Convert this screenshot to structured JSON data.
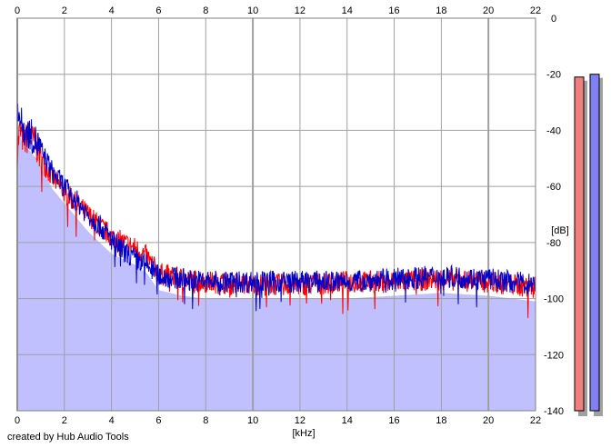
{
  "chart_data": {
    "type": "area",
    "title": "",
    "xlabel": "[kHz]",
    "ylabel": "[dB]",
    "xlim": [
      0,
      22
    ],
    "ylim": [
      -140,
      0
    ],
    "x_ticks": [
      0,
      2,
      4,
      6,
      8,
      10,
      12,
      14,
      16,
      18,
      20,
      22
    ],
    "y_ticks": [
      0,
      -20,
      -40,
      -60,
      -80,
      -100,
      -120,
      -140
    ],
    "grid": true,
    "legend": "none",
    "background_color": "#ffffff",
    "grid_color": "#a0a0a0",
    "fill_color": "#c0c0ff",
    "series": [
      {
        "color": "#ff0000",
        "x": [
          0,
          0.1,
          0.3,
          0.5,
          0.8,
          1.0,
          1.5,
          2.0,
          2.5,
          3.0,
          3.5,
          4.0,
          4.5,
          5.0,
          5.5,
          6.0,
          7.0,
          8.0,
          10.0,
          12.0,
          14.0,
          16.0,
          18.0,
          20.0,
          21.0,
          22.0
        ],
        "y": [
          -48,
          -40,
          -44,
          -42,
          -45,
          -50,
          -57,
          -62,
          -66,
          -70,
          -74,
          -78,
          -80,
          -82,
          -85,
          -91,
          -93,
          -94,
          -95,
          -95,
          -94,
          -94,
          -93,
          -94,
          -95,
          -96
        ]
      },
      {
        "color": "#0000cc",
        "x": [
          0,
          0.1,
          0.3,
          0.5,
          0.8,
          1.0,
          1.5,
          2.0,
          2.5,
          3.0,
          3.5,
          4.0,
          4.5,
          5.0,
          5.5,
          6.0,
          7.0,
          8.0,
          10.0,
          12.0,
          14.0,
          16.0,
          18.0,
          20.0,
          21.0,
          22.0
        ],
        "y": [
          -28,
          -36,
          -40,
          -41,
          -44,
          -47,
          -55,
          -60,
          -65,
          -70,
          -74,
          -79,
          -83,
          -86,
          -88,
          -92,
          -93,
          -94,
          -94,
          -94,
          -94,
          -93,
          -92,
          -93,
          -94,
          -95
        ]
      }
    ],
    "level_meters": [
      {
        "value": -21,
        "color": "#f08080"
      },
      {
        "value": -20,
        "color": "#8080f0"
      }
    ]
  },
  "credit": "created by Hub Audio Tools"
}
